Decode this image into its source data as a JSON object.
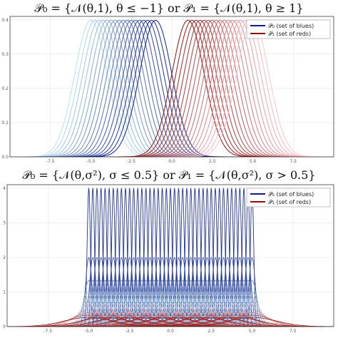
{
  "chart_data": [
    {
      "type": "line",
      "title": "𝒫₀ = {𝒩(θ,1), θ ≤ −1} or 𝒫₁ = {𝒩(θ,1), θ ≥ 1}",
      "xlabel": "",
      "ylabel": "",
      "xlim": [
        -10,
        10
      ],
      "ylim": [
        0,
        0.41
      ],
      "x_ticks": [
        "-7.5",
        "-5.0",
        "-2.5",
        "0.0",
        "2.5",
        "5.0",
        "7.5"
      ],
      "y_ticks": [
        "0.0",
        "0.1",
        "0.2",
        "0.3",
        "0.4"
      ],
      "legend_placement": "top-right",
      "series": [
        {
          "name": "𝒫₀ (set of blues)",
          "color_light": "#b9dfee",
          "color_dark": "#0b1e8c",
          "theta": [
            -5.0,
            -4.75,
            -4.5,
            -4.25,
            -4.0,
            -3.75,
            -3.5,
            -3.25,
            -3.0,
            -2.75,
            -2.5,
            -2.25,
            -2.0,
            -1.75,
            -1.5,
            -1.25,
            -1.0
          ],
          "sigma": 1
        },
        {
          "name": "𝒫₁ (set of reds)",
          "color_light": "#f6c4cc",
          "color_dark": "#8e0b0b",
          "theta": [
            1.0,
            1.25,
            1.5,
            1.75,
            2.0,
            2.25,
            2.5,
            2.75,
            3.0,
            3.25,
            3.5,
            3.75,
            4.0,
            4.25,
            4.5,
            4.75,
            5.0
          ],
          "sigma": 1
        }
      ]
    },
    {
      "type": "line",
      "title": "𝒫₀ = {𝒩(θ,σ²), σ ≤ 0.5} or 𝒫₁ = {𝒩(θ,σ²), σ > 0.5}",
      "xlabel": "",
      "ylabel": "",
      "xlim": [
        -10,
        10
      ],
      "ylim": [
        0,
        4.1
      ],
      "x_ticks": [
        "-7.5",
        "-5.0",
        "-2.5",
        "0.0",
        "2.5",
        "5.0",
        "7.5"
      ],
      "y_ticks": [
        "0",
        "1",
        "2",
        "3",
        "4"
      ],
      "legend_placement": "top-right",
      "series": [
        {
          "name": "𝒫₀ (set of blues)",
          "color_light": "#b9dfee",
          "color_dark": "#0b1e8c",
          "theta": [
            -5.0,
            -4.75,
            -4.5,
            -4.25,
            -4.0,
            -3.75,
            -3.5,
            -3.25,
            -3.0,
            -2.75,
            -2.5,
            -2.25,
            -2.0,
            -1.75,
            -1.5,
            -1.25,
            -1.0,
            -0.75,
            -0.5,
            -0.25,
            0.0,
            0.25,
            0.5,
            0.75,
            1.0,
            1.25,
            1.5,
            1.75,
            2.0,
            2.25,
            2.5,
            2.75,
            3.0,
            3.25,
            3.5,
            3.75,
            4.0,
            4.25,
            4.5,
            4.75,
            5.0
          ],
          "sigma": [
            0.1,
            0.2,
            0.3,
            0.4,
            0.5
          ]
        },
        {
          "name": "𝒫₁ (set of reds)",
          "color_light": "#f6c4cc",
          "color_dark": "#8e0b0b",
          "theta": [
            -5.0,
            -4.0,
            -3.0,
            -2.0,
            -1.0,
            0.0,
            1.0,
            2.0,
            3.0,
            4.0,
            5.0
          ],
          "sigma": [
            0.6,
            0.8,
            1.0,
            1.2,
            1.5
          ]
        }
      ]
    }
  ]
}
